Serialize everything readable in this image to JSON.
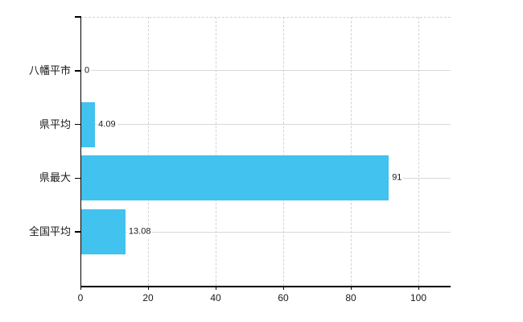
{
  "chart_data": {
    "type": "bar",
    "orientation": "horizontal",
    "title": "",
    "xlabel": "",
    "ylabel": "",
    "legend": false,
    "categories": [
      "八幡平市",
      "県平均",
      "県最大",
      "全国平均"
    ],
    "values": [
      0,
      4.09,
      91,
      13.08
    ],
    "value_labels": [
      "0",
      "4.09",
      "91",
      "13.08"
    ],
    "x_ticks": [
      0,
      20,
      40,
      60,
      80,
      100
    ],
    "xlim": [
      0,
      109.5
    ],
    "grid": {
      "horizontal": "solid",
      "vertical": "dashed",
      "top_border": "dashed"
    },
    "colors": {
      "bar": "#41c2ef",
      "grid_horizontal": "#d9d9d9",
      "grid_vertical": "#d5d1d5",
      "axis": "#000000",
      "text": "#1a1a1a",
      "background": "#ffffff"
    }
  }
}
